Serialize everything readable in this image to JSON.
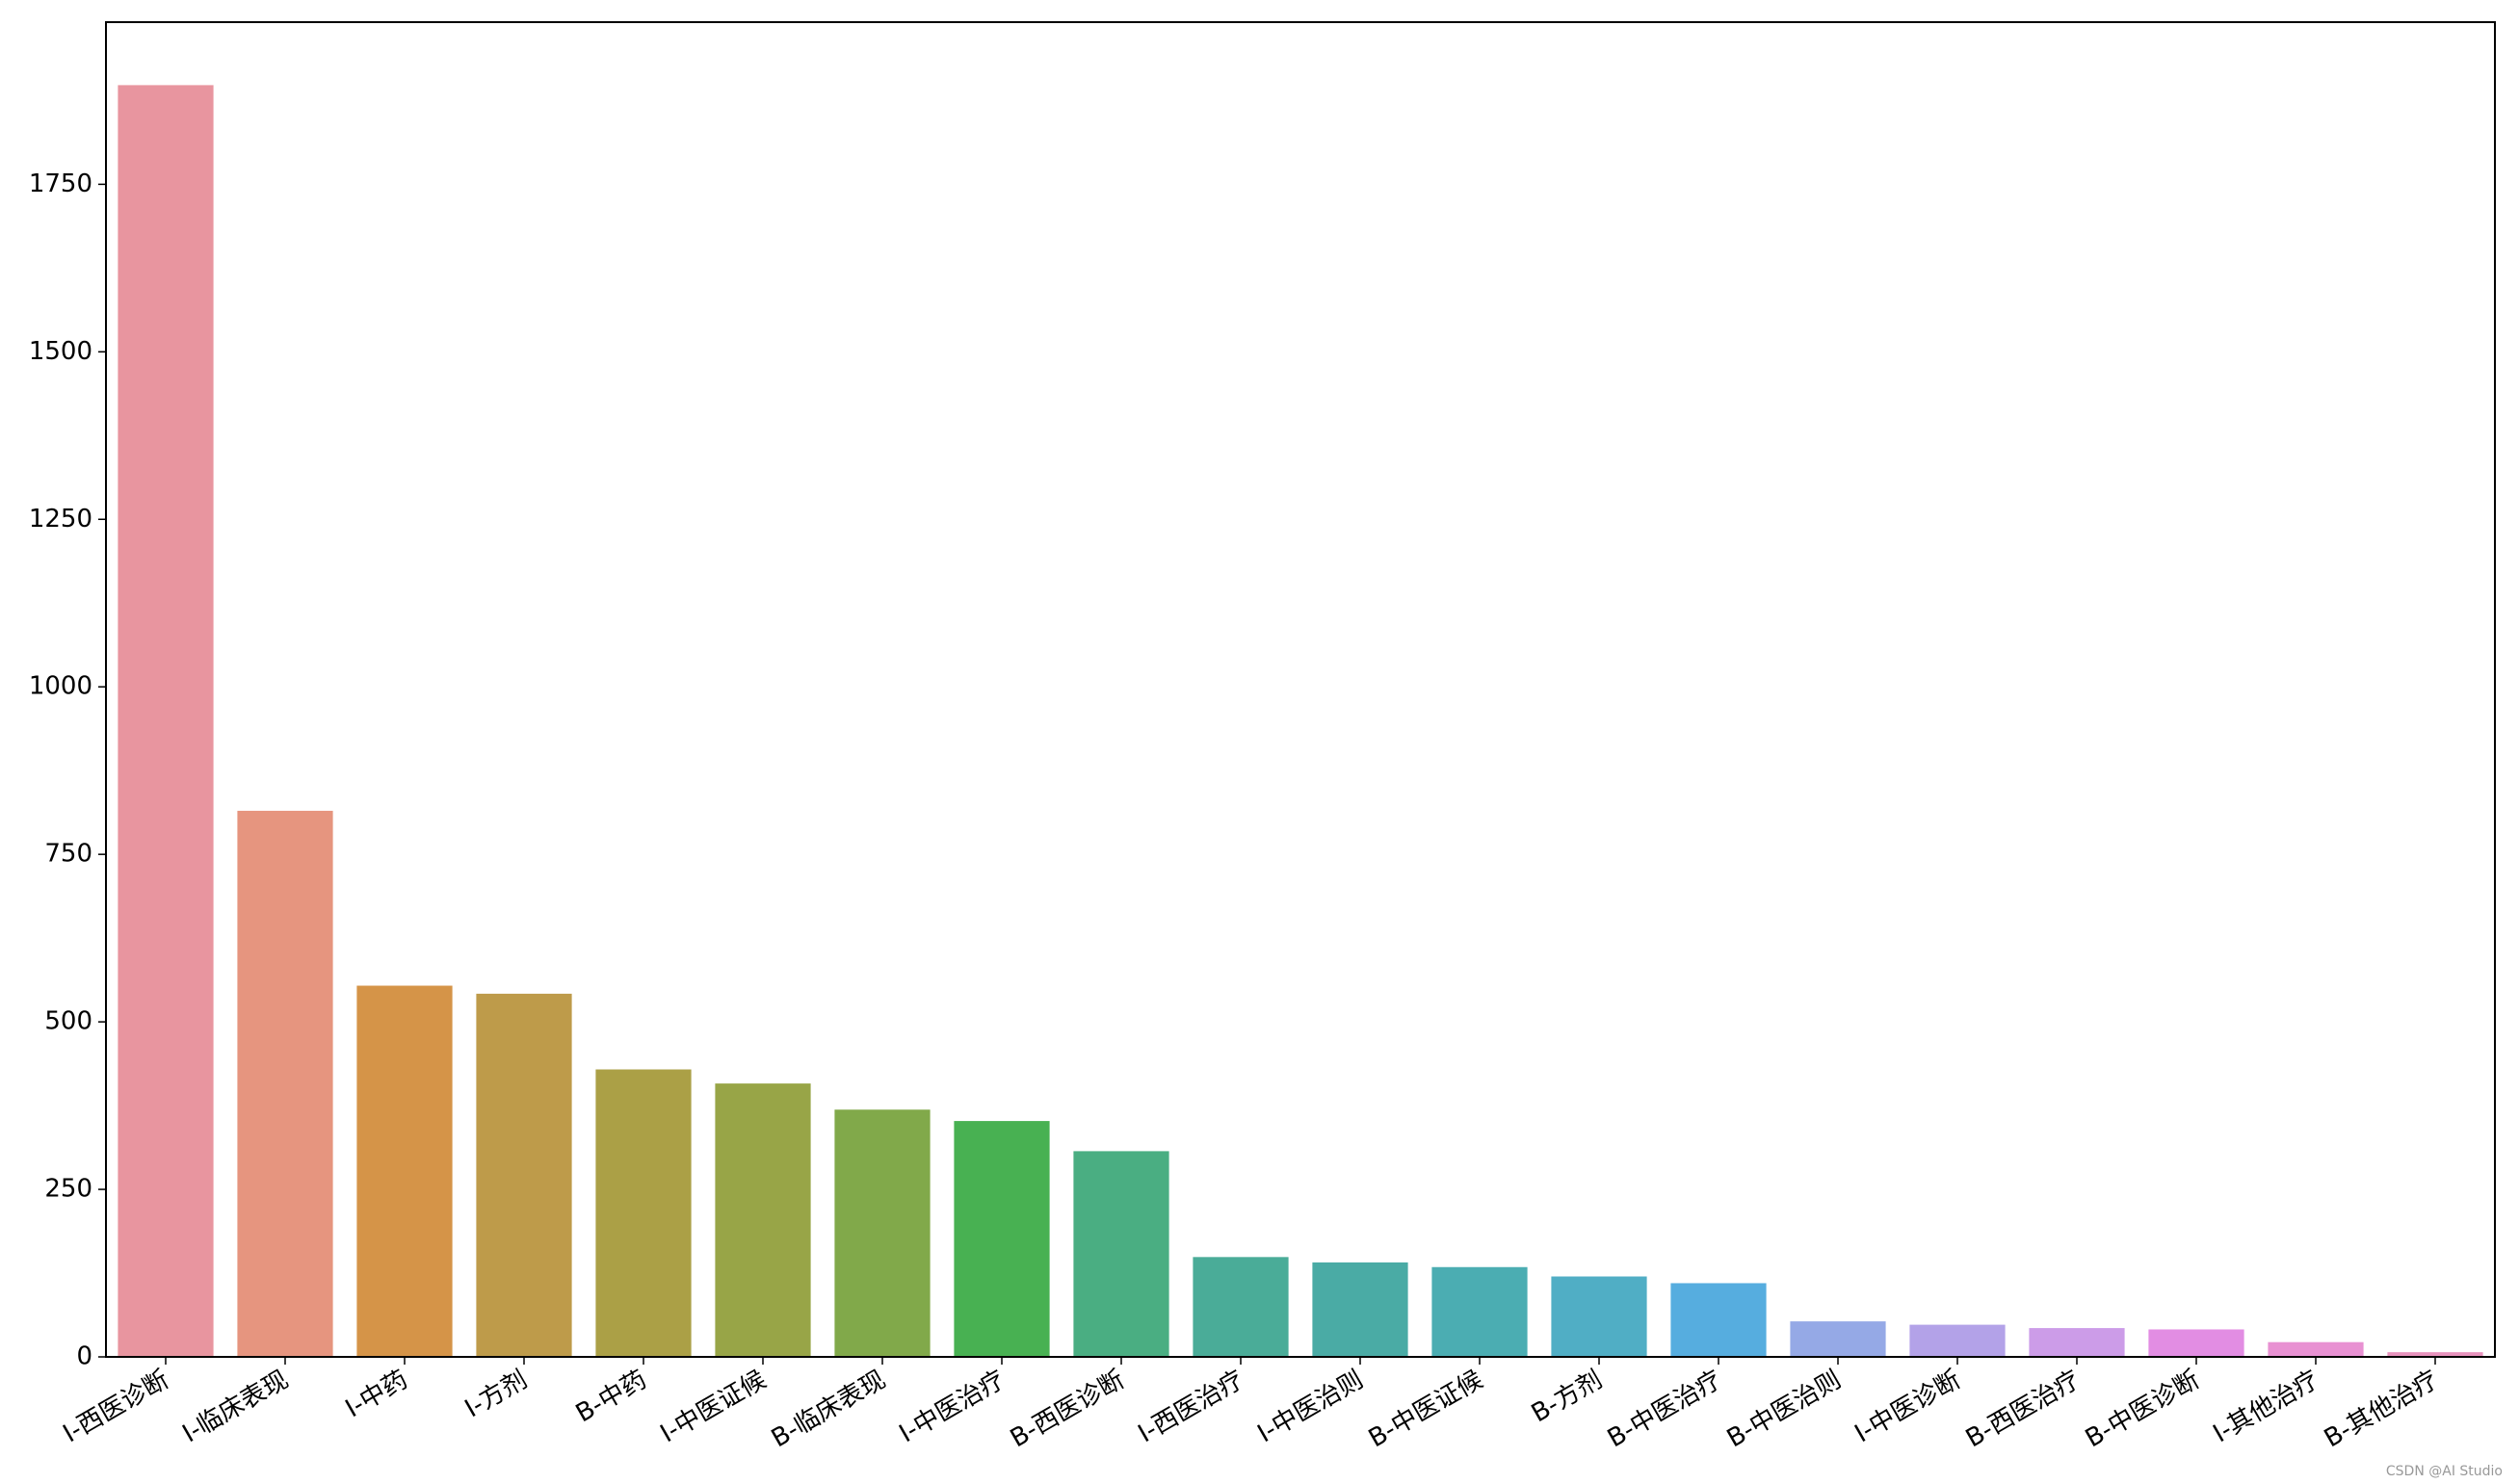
{
  "chart_data": {
    "type": "bar",
    "categories": [
      "I-西医诊断",
      "I-临床表现",
      "I-中药",
      "I-方剂",
      "B-中药",
      "I-中医证候",
      "B-临床表现",
      "I-中医治疗",
      "B-西医诊断",
      "I-西医治疗",
      "I-中医治则",
      "B-中医证候",
      "B-方剂",
      "B-中医治疗",
      "B-中医治则",
      "I-中医诊断",
      "B-西医治疗",
      "B-中医诊断",
      "I-其他治疗",
      "B-其他治疗"
    ],
    "values": [
      1898,
      815,
      554,
      542,
      429,
      408,
      369,
      352,
      307,
      149,
      141,
      134,
      120,
      110,
      53,
      48,
      43,
      41,
      22,
      7
    ],
    "colors": [
      "#e8959f",
      "#e6957f",
      "#d59448",
      "#be9b4a",
      "#aba046",
      "#98a547",
      "#81a94a",
      "#48b152",
      "#4aae82",
      "#4aac98",
      "#4aaba5",
      "#4badb2",
      "#50aec5",
      "#56addf",
      "#95a9e6",
      "#b3a2e8",
      "#cc9ce8",
      "#e28de3",
      "#e891d2",
      "#e893bd"
    ],
    "ylim": [
      0,
      1992
    ],
    "yticks": [
      0,
      250,
      500,
      750,
      1000,
      1250,
      1500,
      1750
    ],
    "watermark": "CSDN @AI Studio"
  }
}
